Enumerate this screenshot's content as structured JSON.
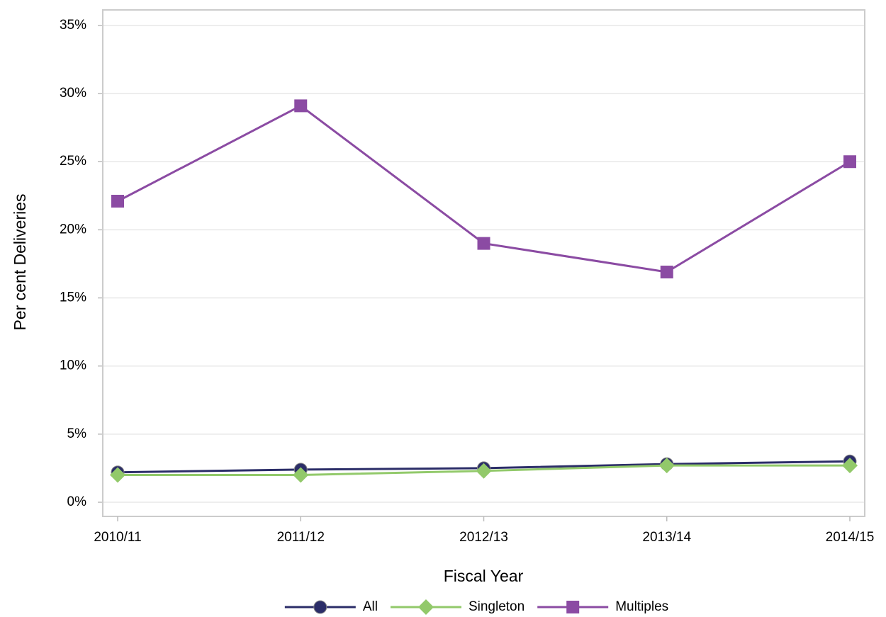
{
  "chart_data": {
    "type": "line",
    "x_label": "Fiscal Year",
    "y_label": "Per cent Deliveries",
    "categories": [
      "2010/11",
      "2011/12",
      "2012/13",
      "2013/14",
      "2014/15"
    ],
    "series": [
      {
        "name": "All",
        "color": "#2b2d68",
        "marker": "circle",
        "values": [
          2.2,
          2.4,
          2.5,
          2.8,
          3.0
        ]
      },
      {
        "name": "Singleton",
        "color": "#92c96a",
        "marker": "diamond",
        "values": [
          2.0,
          2.0,
          2.3,
          2.7,
          2.7
        ]
      },
      {
        "name": "Multiples",
        "color": "#8b4ba3",
        "marker": "square",
        "values": [
          22.1,
          29.1,
          19.0,
          16.9,
          25.0
        ]
      }
    ],
    "ylim": [
      -1.04,
      36.14
    ],
    "yticks": [
      {
        "value": 0,
        "label": "0%"
      },
      {
        "value": 5,
        "label": "5%"
      },
      {
        "value": 10,
        "label": "10%"
      },
      {
        "value": 15,
        "label": "15%"
      },
      {
        "value": 20,
        "label": "20%"
      },
      {
        "value": 25,
        "label": "25%"
      },
      {
        "value": 30,
        "label": "30%"
      },
      {
        "value": 35,
        "label": "35%"
      }
    ],
    "grid": true,
    "legend": "bottom"
  }
}
